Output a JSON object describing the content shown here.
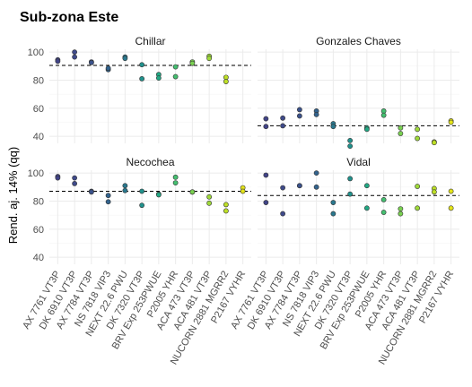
{
  "chart_data": {
    "type": "scatter",
    "title": "Sub-zona Este",
    "ylabel": "Rend. aj. 14% (qq)",
    "xlabel": "",
    "ylim": [
      35,
      102
    ],
    "yticks": [
      40,
      60,
      80,
      100
    ],
    "grid": true,
    "legend": "none",
    "categories": [
      "AX 7761 VT3P",
      "DK 6910 VT3P",
      "AX 7784 VT3P",
      "NS 7818 VIP3",
      "NEXT 22.6 PWU",
      "DK 7320 VT3P",
      "BRV Exp 253PWUE",
      "P2005 YHR",
      "ACA 473 VT3P",
      "ACA 481 VT3P",
      "NUCORN 2881 MGRR2",
      "P2167 VYHR"
    ],
    "category_colors": [
      "#414487",
      "#3f4a8a",
      "#3b528b",
      "#33638d",
      "#2a788e",
      "#21918c",
      "#22a884",
      "#44bf70",
      "#7ad151",
      "#9fda3a",
      "#bddf26",
      "#e4e419"
    ],
    "panels": [
      {
        "name": "Chillar",
        "mean": 90.5,
        "points": [
          [
            0,
            94.5
          ],
          [
            0,
            93.5
          ],
          [
            1,
            100
          ],
          [
            1,
            96.5
          ],
          [
            2,
            93
          ],
          [
            2,
            92.5
          ],
          [
            3,
            87.5
          ],
          [
            3,
            88.5
          ],
          [
            4,
            96.5
          ],
          [
            4,
            95.5
          ],
          [
            5,
            91
          ],
          [
            5,
            81
          ],
          [
            6,
            84
          ],
          [
            6,
            81.5
          ],
          [
            7,
            89.5
          ],
          [
            7,
            82.5
          ],
          [
            8,
            93
          ],
          [
            8,
            92
          ],
          [
            9,
            97
          ],
          [
            9,
            95.5
          ],
          [
            10,
            82
          ],
          [
            10,
            79
          ],
          [
            11,
            null
          ]
        ]
      },
      {
        "name": "Gonzales Chaves",
        "mean": 47.5,
        "points": [
          [
            0,
            52.5
          ],
          [
            0,
            47
          ],
          [
            1,
            53
          ],
          [
            1,
            47.5
          ],
          [
            2,
            59
          ],
          [
            2,
            54.5
          ],
          [
            3,
            58
          ],
          [
            3,
            55.5
          ],
          [
            4,
            49
          ],
          [
            4,
            47
          ],
          [
            5,
            37
          ],
          [
            5,
            33
          ],
          [
            6,
            46
          ],
          [
            6,
            45
          ],
          [
            7,
            58
          ],
          [
            7,
            55
          ],
          [
            8,
            46
          ],
          [
            8,
            42
          ],
          [
            9,
            45
          ],
          [
            9,
            38.5
          ],
          [
            10,
            36
          ],
          [
            10,
            35.5
          ],
          [
            11,
            51
          ],
          [
            11,
            50
          ]
        ]
      },
      {
        "name": "Necochea",
        "mean": 87,
        "points": [
          [
            0,
            97.5
          ],
          [
            0,
            96.5
          ],
          [
            1,
            96.5
          ],
          [
            1,
            92.5
          ],
          [
            2,
            87
          ],
          [
            2,
            86.5
          ],
          [
            3,
            84
          ],
          [
            3,
            79.5
          ],
          [
            4,
            91
          ],
          [
            4,
            87.5
          ],
          [
            5,
            87
          ],
          [
            5,
            77
          ],
          [
            6,
            85
          ],
          [
            6,
            84.5
          ],
          [
            7,
            97
          ],
          [
            7,
            93
          ],
          [
            8,
            86.5
          ],
          [
            8,
            86.5
          ],
          [
            9,
            83
          ],
          [
            9,
            78.5
          ],
          [
            10,
            77.5
          ],
          [
            10,
            73
          ],
          [
            11,
            89.5
          ],
          [
            11,
            87
          ]
        ]
      },
      {
        "name": "Vidal",
        "mean": 84,
        "points": [
          [
            0,
            98.5
          ],
          [
            0,
            79
          ],
          [
            1,
            89.5
          ],
          [
            1,
            71
          ],
          [
            2,
            91
          ],
          [
            2,
            91
          ],
          [
            3,
            100
          ],
          [
            3,
            90
          ],
          [
            4,
            79
          ],
          [
            4,
            71
          ],
          [
            5,
            96
          ],
          [
            5,
            85
          ],
          [
            6,
            91
          ],
          [
            6,
            75
          ],
          [
            7,
            81
          ],
          [
            7,
            72
          ],
          [
            8,
            74.5
          ],
          [
            8,
            71
          ],
          [
            9,
            90.5
          ],
          [
            9,
            75
          ],
          [
            10,
            89
          ],
          [
            10,
            86.5
          ],
          [
            11,
            87
          ],
          [
            11,
            75
          ]
        ]
      }
    ]
  }
}
